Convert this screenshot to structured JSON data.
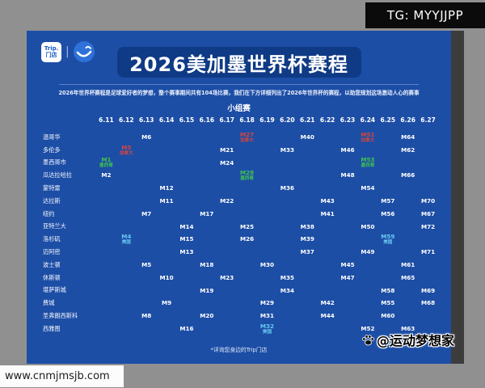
{
  "badges": {
    "tg": "TG: MYYJJPP",
    "url": "www.cnmjmsjb.com",
    "attribution": "@运动梦想家"
  },
  "poster": {
    "logo": {
      "line1": "Trip.",
      "line2": "门店"
    },
    "title": "2026美加墨世界杯赛程",
    "subtitle": "2026年世界杯赛程是足球爱好者的梦想，整个赛事期间共有104场比赛，我们在下方详细列出了2026年世界杯的赛程，以助您规划这场激动人心的赛事",
    "stage_label": "小组赛",
    "footer_note": "*详询您身边的Trip门店"
  },
  "colors": {
    "poster_bg": "#1d4ea6",
    "title_bg": "#0f3a85",
    "canada": "#d8453c",
    "mexico": "#3ec24f",
    "usa": "#66c8f2",
    "default": "#ffffff"
  },
  "chart_data": {
    "type": "table",
    "title": "2026美加墨世界杯赛程",
    "stage": "小组赛",
    "columns": [
      "6.11",
      "6.12",
      "6.13",
      "6.14",
      "6.15",
      "6.16",
      "6.17",
      "6.18",
      "6.19",
      "6.20",
      "6.21",
      "6.22",
      "6.23",
      "6.24",
      "6.25",
      "6.26",
      "6.27"
    ],
    "rows": [
      "温哥华",
      "多伦多",
      "墨西哥市",
      "瓜达拉哈拉",
      "蒙特雷",
      "达拉斯",
      "纽约",
      "亚特兰大",
      "洛杉矶",
      "迈阿密",
      "波士顿",
      "休斯顿",
      "堪萨斯城",
      "费城",
      "圣弗朗西斯科",
      "西雅图"
    ],
    "matches": [
      {
        "city": "温哥华",
        "date": "6.13",
        "match": "M6"
      },
      {
        "city": "温哥华",
        "date": "6.18",
        "match": "M27",
        "team": "加拿大",
        "color": "canada"
      },
      {
        "city": "温哥华",
        "date": "6.21",
        "match": "M40"
      },
      {
        "city": "温哥华",
        "date": "6.24",
        "match": "M51",
        "team": "加拿大",
        "color": "canada"
      },
      {
        "city": "温哥华",
        "date": "6.26",
        "match": "M64"
      },
      {
        "city": "多伦多",
        "date": "6.12",
        "match": "M3",
        "team": "加拿大",
        "color": "canada"
      },
      {
        "city": "多伦多",
        "date": "6.17",
        "match": "M21"
      },
      {
        "city": "多伦多",
        "date": "6.20",
        "match": "M33"
      },
      {
        "city": "多伦多",
        "date": "6.23",
        "match": "M46"
      },
      {
        "city": "多伦多",
        "date": "6.26",
        "match": "M62"
      },
      {
        "city": "墨西哥市",
        "date": "6.11",
        "match": "M1",
        "team": "墨西哥",
        "color": "mexico"
      },
      {
        "city": "墨西哥市",
        "date": "6.17",
        "match": "M24"
      },
      {
        "city": "墨西哥市",
        "date": "6.24",
        "match": "M53",
        "team": "墨西哥",
        "color": "mexico"
      },
      {
        "city": "瓜达拉哈拉",
        "date": "6.11",
        "match": "M2"
      },
      {
        "city": "瓜达拉哈拉",
        "date": "6.18",
        "match": "M28",
        "team": "墨西哥",
        "color": "mexico"
      },
      {
        "city": "瓜达拉哈拉",
        "date": "6.23",
        "match": "M48"
      },
      {
        "city": "瓜达拉哈拉",
        "date": "6.26",
        "match": "M66"
      },
      {
        "city": "蒙特雷",
        "date": "6.14",
        "match": "M12"
      },
      {
        "city": "蒙特雷",
        "date": "6.20",
        "match": "M36"
      },
      {
        "city": "蒙特雷",
        "date": "6.24",
        "match": "M54"
      },
      {
        "city": "达拉斯",
        "date": "6.14",
        "match": "M11"
      },
      {
        "city": "达拉斯",
        "date": "6.17",
        "match": "M22"
      },
      {
        "city": "达拉斯",
        "date": "6.22",
        "match": "M43"
      },
      {
        "city": "达拉斯",
        "date": "6.25",
        "match": "M57"
      },
      {
        "city": "达拉斯",
        "date": "6.27",
        "match": "M70"
      },
      {
        "city": "纽约",
        "date": "6.13",
        "match": "M7"
      },
      {
        "city": "纽约",
        "date": "6.16",
        "match": "M17"
      },
      {
        "city": "纽约",
        "date": "6.22",
        "match": "M41"
      },
      {
        "city": "纽约",
        "date": "6.25",
        "match": "M56"
      },
      {
        "city": "纽约",
        "date": "6.27",
        "match": "M67"
      },
      {
        "city": "亚特兰大",
        "date": "6.15",
        "match": "M14"
      },
      {
        "city": "亚特兰大",
        "date": "6.18",
        "match": "M25"
      },
      {
        "city": "亚特兰大",
        "date": "6.21",
        "match": "M38"
      },
      {
        "city": "亚特兰大",
        "date": "6.24",
        "match": "M50"
      },
      {
        "city": "亚特兰大",
        "date": "6.27",
        "match": "M72"
      },
      {
        "city": "洛杉矶",
        "date": "6.12",
        "match": "M4",
        "team": "美国",
        "color": "usa"
      },
      {
        "city": "洛杉矶",
        "date": "6.15",
        "match": "M15"
      },
      {
        "city": "洛杉矶",
        "date": "6.18",
        "match": "M26"
      },
      {
        "city": "洛杉矶",
        "date": "6.21",
        "match": "M39"
      },
      {
        "city": "洛杉矶",
        "date": "6.25",
        "match": "M59",
        "team": "美国",
        "color": "usa"
      },
      {
        "city": "迈阿密",
        "date": "6.15",
        "match": "M13"
      },
      {
        "city": "迈阿密",
        "date": "6.21",
        "match": "M37"
      },
      {
        "city": "迈阿密",
        "date": "6.24",
        "match": "M49"
      },
      {
        "city": "迈阿密",
        "date": "6.27",
        "match": "M71"
      },
      {
        "city": "波士顿",
        "date": "6.13",
        "match": "M5"
      },
      {
        "city": "波士顿",
        "date": "6.16",
        "match": "M18"
      },
      {
        "city": "波士顿",
        "date": "6.19",
        "match": "M30"
      },
      {
        "city": "波士顿",
        "date": "6.23",
        "match": "M45"
      },
      {
        "city": "波士顿",
        "date": "6.26",
        "match": "M61"
      },
      {
        "city": "休斯顿",
        "date": "6.14",
        "match": "M10"
      },
      {
        "city": "休斯顿",
        "date": "6.17",
        "match": "M23"
      },
      {
        "city": "休斯顿",
        "date": "6.20",
        "match": "M35"
      },
      {
        "city": "休斯顿",
        "date": "6.23",
        "match": "M47"
      },
      {
        "city": "休斯顿",
        "date": "6.26",
        "match": "M65"
      },
      {
        "city": "堪萨斯城",
        "date": "6.16",
        "match": "M19"
      },
      {
        "city": "堪萨斯城",
        "date": "6.20",
        "match": "M34"
      },
      {
        "city": "堪萨斯城",
        "date": "6.25",
        "match": "M58"
      },
      {
        "city": "堪萨斯城",
        "date": "6.27",
        "match": "M69"
      },
      {
        "city": "费城",
        "date": "6.14",
        "match": "M9"
      },
      {
        "city": "费城",
        "date": "6.19",
        "match": "M29"
      },
      {
        "city": "费城",
        "date": "6.22",
        "match": "M42"
      },
      {
        "city": "费城",
        "date": "6.25",
        "match": "M55"
      },
      {
        "city": "费城",
        "date": "6.27",
        "match": "M68"
      },
      {
        "city": "圣弗朗西斯科",
        "date": "6.13",
        "match": "M8"
      },
      {
        "city": "圣弗朗西斯科",
        "date": "6.16",
        "match": "M20"
      },
      {
        "city": "圣弗朗西斯科",
        "date": "6.19",
        "match": "M31"
      },
      {
        "city": "圣弗朗西斯科",
        "date": "6.22",
        "match": "M44"
      },
      {
        "city": "圣弗朗西斯科",
        "date": "6.25",
        "match": "M60"
      },
      {
        "city": "西雅图",
        "date": "6.15",
        "match": "M16"
      },
      {
        "city": "西雅图",
        "date": "6.19",
        "match": "M32",
        "team": "美国",
        "color": "usa"
      },
      {
        "city": "西雅图",
        "date": "6.24",
        "match": "M52"
      },
      {
        "city": "西雅图",
        "date": "6.26",
        "match": "M63"
      }
    ]
  }
}
